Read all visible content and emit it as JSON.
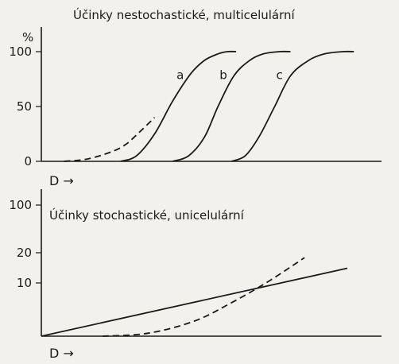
{
  "chart_data": [
    {
      "type": "line",
      "title": "Účinky nestochastické, multicelulární",
      "ylabel": "%",
      "xlabel": "D →",
      "ylim": [
        0,
        100
      ],
      "yticks": [
        "0",
        "50",
        "100"
      ],
      "grid": false,
      "series": [
        {
          "name": "a",
          "style": "solid",
          "x": [
            0.35,
            0.42,
            0.5,
            0.58,
            0.66,
            0.72,
            0.78,
            0.82,
            0.86
          ],
          "y": [
            0,
            5,
            25,
            55,
            80,
            92,
            98,
            100,
            100
          ]
        },
        {
          "name": "",
          "style": "dashed",
          "x": [
            0.1,
            0.2,
            0.3,
            0.37,
            0.44,
            0.5
          ],
          "y": [
            0,
            2,
            8,
            15,
            28,
            40
          ]
        },
        {
          "name": "b",
          "style": "solid",
          "x": [
            0.58,
            0.65,
            0.72,
            0.78,
            0.85,
            0.92,
            0.98,
            1.05,
            1.1
          ],
          "y": [
            0,
            5,
            22,
            50,
            78,
            92,
            98,
            100,
            100
          ]
        },
        {
          "name": "c",
          "style": "solid",
          "x": [
            0.84,
            0.9,
            0.96,
            1.03,
            1.1,
            1.18,
            1.25,
            1.33,
            1.38
          ],
          "y": [
            0,
            5,
            22,
            50,
            78,
            92,
            98,
            100,
            100
          ]
        }
      ]
    },
    {
      "type": "line",
      "title": "Účinky stochastické, unicelulární",
      "xlabel": "D →",
      "ylim": [
        0,
        100
      ],
      "yticks": [
        "10",
        "20",
        "100"
      ],
      "grid": false,
      "series": [
        {
          "name": "",
          "style": "solid",
          "x": [
            0.0,
            1.0
          ],
          "y": [
            0,
            22.5
          ]
        },
        {
          "name": "",
          "style": "dashed",
          "x": [
            0.2,
            0.35,
            0.5,
            0.62,
            0.74,
            0.86
          ],
          "y": [
            0,
            1,
            5,
            11,
            18,
            26
          ]
        }
      ]
    }
  ]
}
